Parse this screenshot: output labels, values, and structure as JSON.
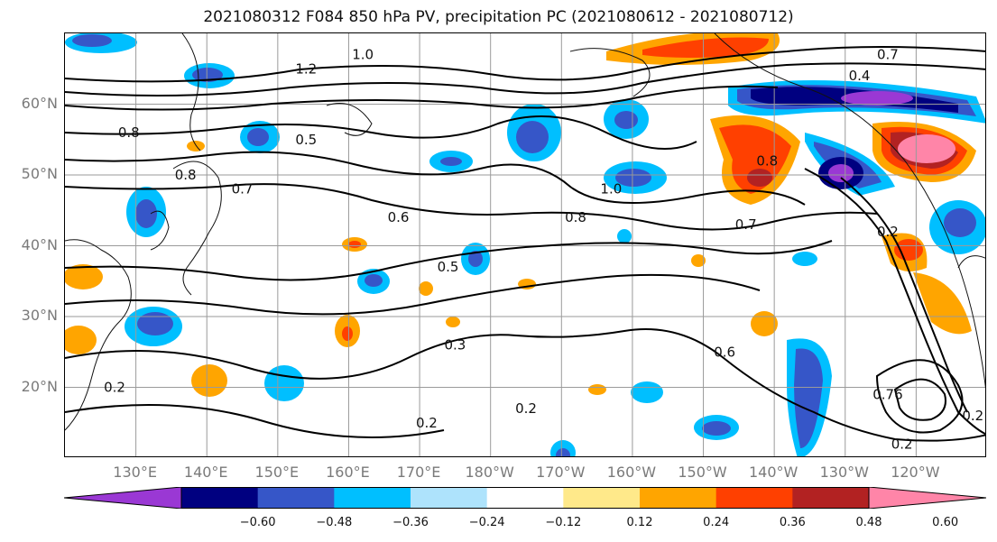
{
  "title": "2021080312 F084 850 hPa PV, precipitation PC (2021080612 - 2021080712)",
  "map": {
    "extent": {
      "lon_min": 120,
      "lon_max": 250,
      "lat_min": 10,
      "lat_max": 70
    },
    "lat_ticks": [
      {
        "lat": 60,
        "label": "60°N"
      },
      {
        "lat": 50,
        "label": "50°N"
      },
      {
        "lat": 40,
        "label": "40°N"
      },
      {
        "lat": 30,
        "label": "30°N"
      },
      {
        "lat": 20,
        "label": "20°N"
      }
    ],
    "lon_ticks": [
      {
        "lon": 130,
        "label": "130°E"
      },
      {
        "lon": 140,
        "label": "140°E"
      },
      {
        "lon": 150,
        "label": "150°E"
      },
      {
        "lon": 160,
        "label": "160°E"
      },
      {
        "lon": 170,
        "label": "170°E"
      },
      {
        "lon": 180,
        "label": "180°W"
      },
      {
        "lon": 190,
        "label": "170°W"
      },
      {
        "lon": 200,
        "label": "160°W"
      },
      {
        "lon": 210,
        "label": "150°W"
      },
      {
        "lon": 220,
        "label": "140°W"
      },
      {
        "lon": 230,
        "label": "130°W"
      },
      {
        "lon": 240,
        "label": "120°W"
      }
    ],
    "grid": true,
    "coastlines": true,
    "pv_contour_labels": [
      {
        "lon": 137,
        "lat": 50,
        "text": "0.8"
      },
      {
        "lon": 129,
        "lat": 56,
        "text": "0.8"
      },
      {
        "lon": 145,
        "lat": 48,
        "text": "0.7"
      },
      {
        "lon": 154,
        "lat": 55,
        "text": "0.5"
      },
      {
        "lon": 154,
        "lat": 65,
        "text": "1.2"
      },
      {
        "lon": 162,
        "lat": 67,
        "text": "1.0"
      },
      {
        "lon": 167,
        "lat": 44,
        "text": "0.6"
      },
      {
        "lon": 174,
        "lat": 37,
        "text": "0.5"
      },
      {
        "lon": 175,
        "lat": 26,
        "text": "0.3"
      },
      {
        "lon": 171,
        "lat": 15,
        "text": "0.2"
      },
      {
        "lon": 185,
        "lat": 17,
        "text": "0.2"
      },
      {
        "lon": 192,
        "lat": 44,
        "text": "0.8"
      },
      {
        "lon": 197,
        "lat": 48,
        "text": "1.0"
      },
      {
        "lon": 219,
        "lat": 52,
        "text": "0.8"
      },
      {
        "lon": 216,
        "lat": 43,
        "text": "0.7"
      },
      {
        "lon": 213,
        "lat": 25,
        "text": "0.6"
      },
      {
        "lon": 236,
        "lat": 67,
        "text": "0.7"
      },
      {
        "lon": 232,
        "lat": 64,
        "text": "0.4"
      },
      {
        "lon": 236,
        "lat": 42,
        "text": "0.2"
      },
      {
        "lon": 236,
        "lat": 19,
        "text": "0.76"
      },
      {
        "lon": 238,
        "lat": 12,
        "text": "0.2"
      },
      {
        "lon": 248,
        "lat": 16,
        "text": "0.2"
      },
      {
        "lon": 127,
        "lat": 20,
        "text": "0.2"
      }
    ],
    "pc_colors": {
      "lt_-0.60": "#9a38d4",
      "-0.60_-0.48": "#000080",
      "-0.48_-0.36": "#3656c8",
      "-0.36_-0.24": "#00bfff",
      "-0.24_-0.12": "#aee3fc",
      "-0.12_0.12": "#ffffff",
      "0.12_0.24": "#ffe98a",
      "0.24_0.36": "#ffa500",
      "0.36_0.48": "#ff4000",
      "0.48_0.60": "#b22222",
      "gt_0.60": "#ff85a8"
    }
  },
  "colorbar": {
    "tick_labels": [
      "−0.60",
      "−0.48",
      "−0.36",
      "−0.24",
      "−0.12",
      "0.12",
      "0.24",
      "0.36",
      "0.48",
      "0.60"
    ],
    "bins": [
      "#9a38d4",
      "#000080",
      "#3656c8",
      "#00bfff",
      "#aee3fc",
      "#ffffff",
      "#ffe98a",
      "#ffa500",
      "#ff4000",
      "#b22222",
      "#ff85a8"
    ]
  }
}
